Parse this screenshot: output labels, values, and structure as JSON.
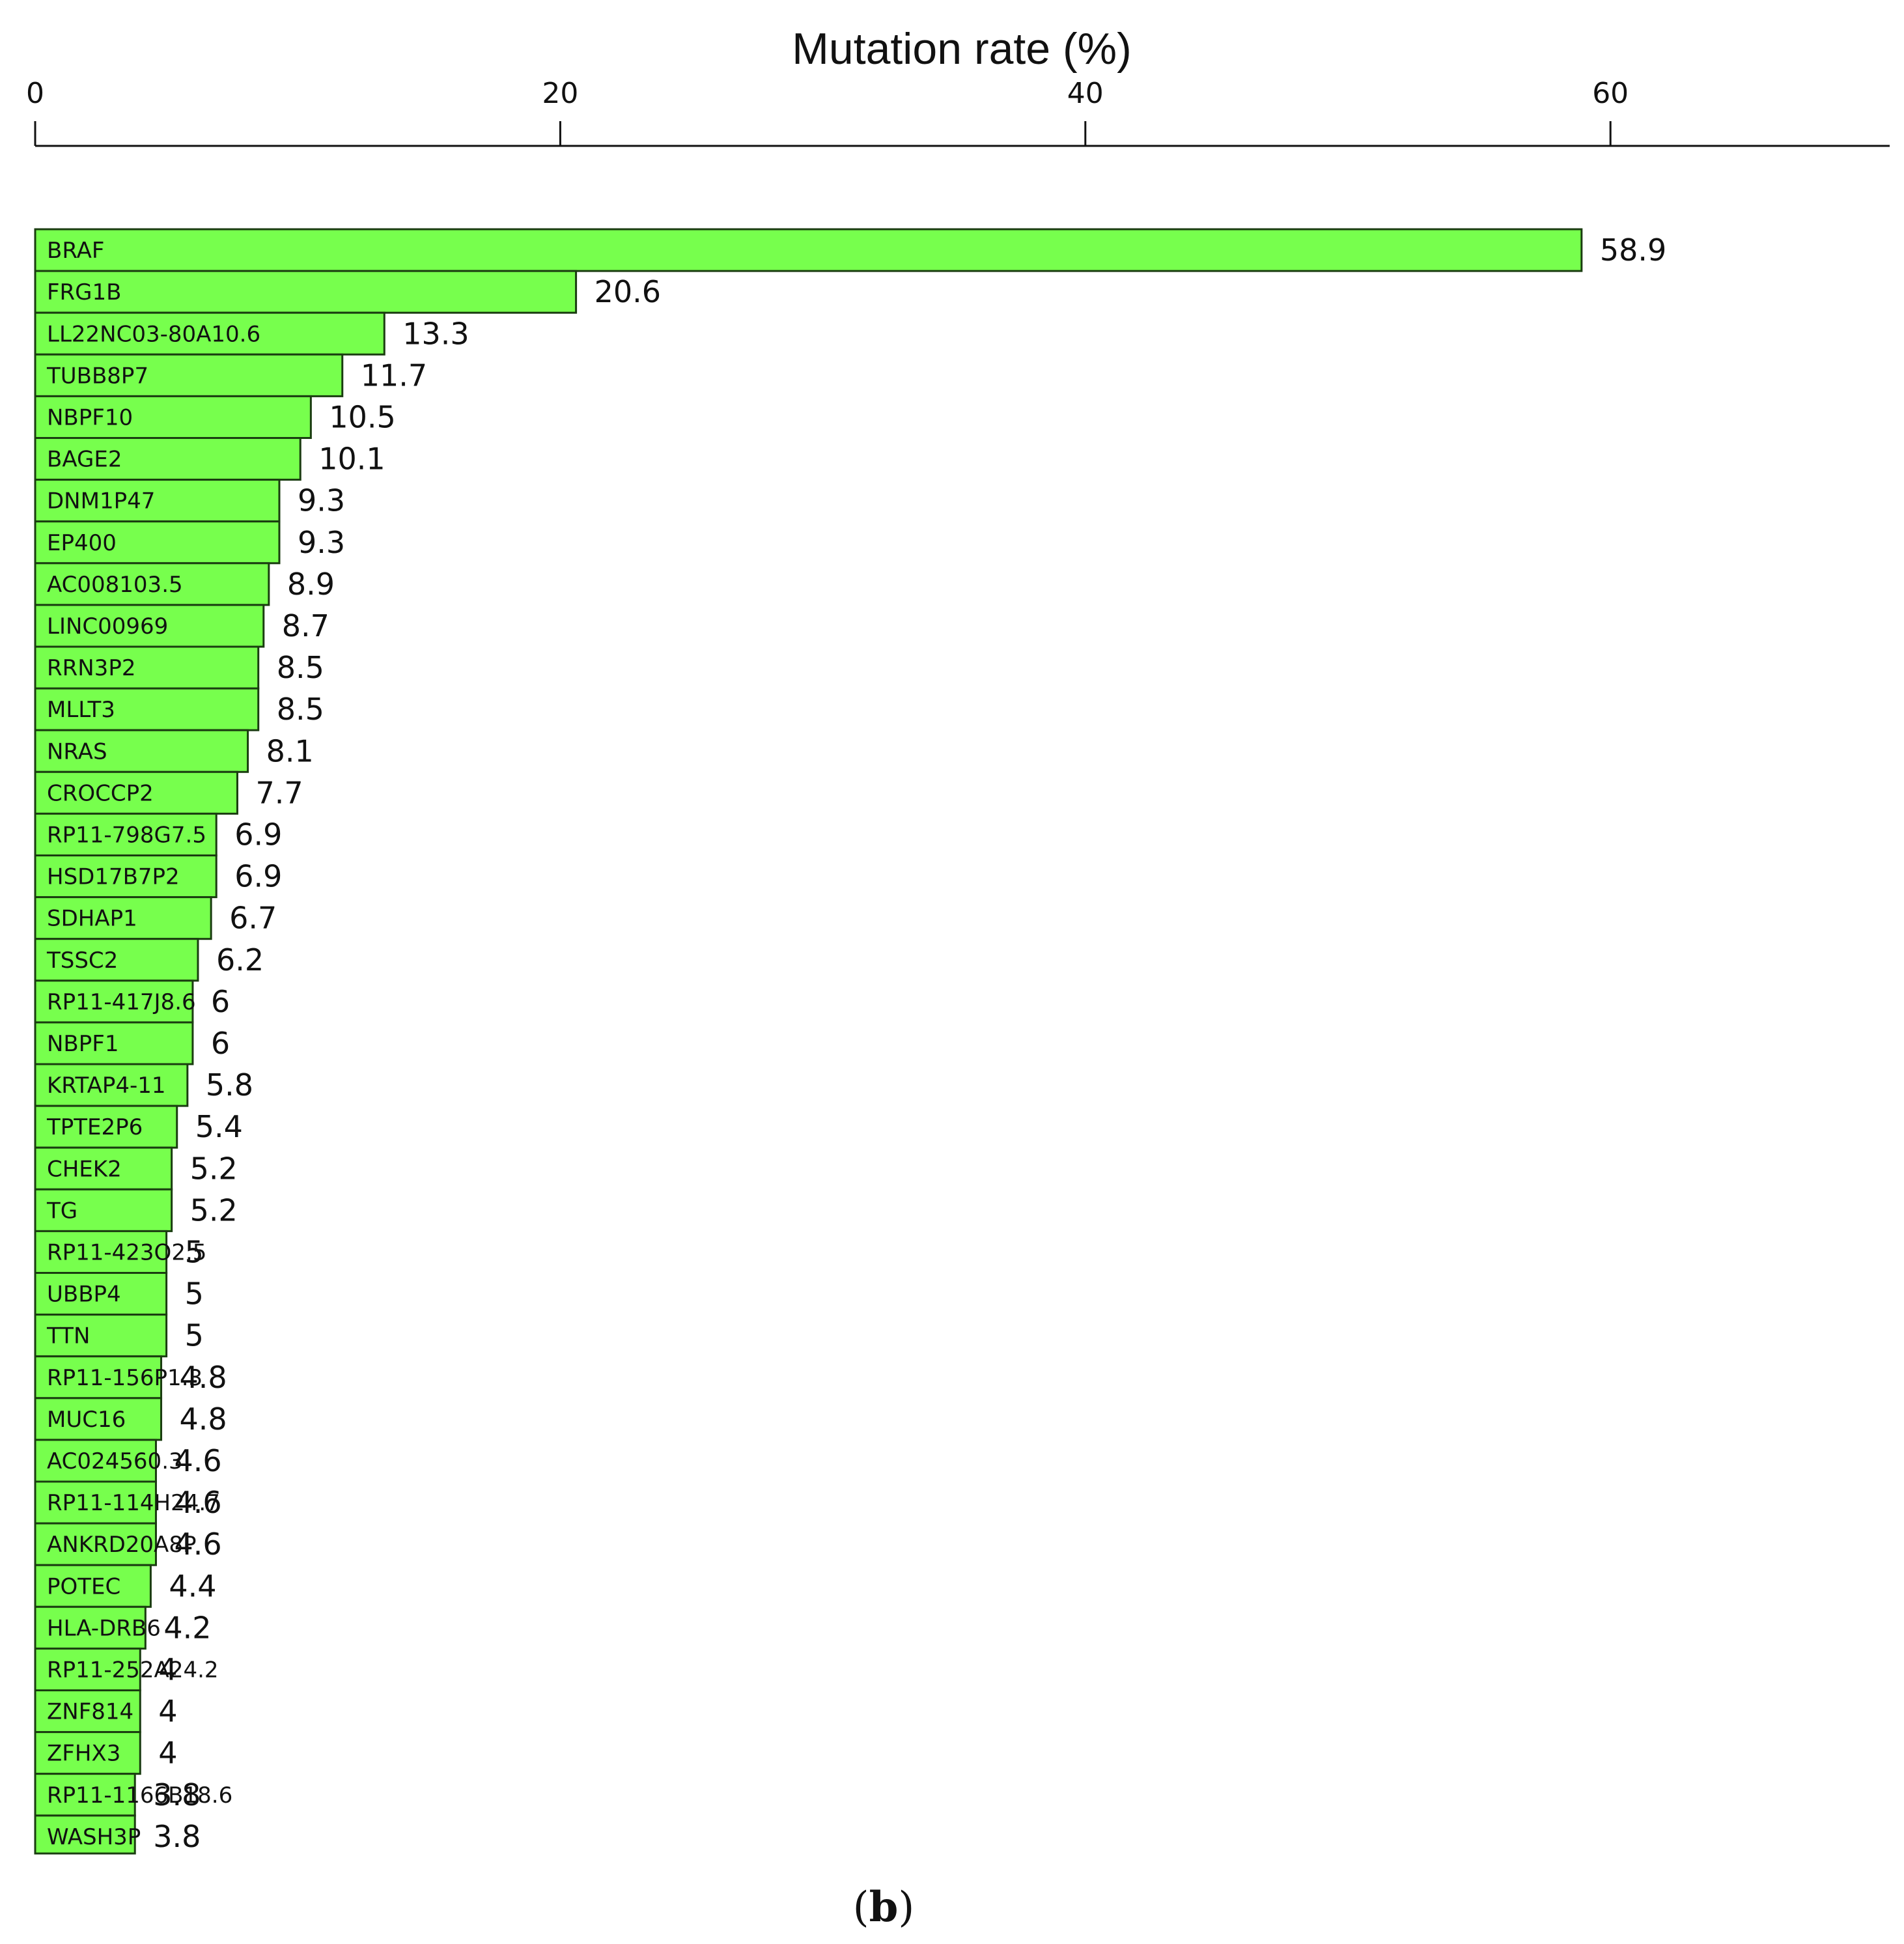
{
  "chart_data": {
    "type": "bar",
    "orientation": "horizontal",
    "title": "Mutation rate (%)",
    "xlabel": "Mutation rate (%)",
    "ylabel": "",
    "xaxis_position": "top",
    "xlim": [
      0,
      71
    ],
    "xticks": [
      0,
      20,
      40,
      60
    ],
    "grid": false,
    "legend": "none",
    "bar_color": "#77ff4d",
    "bar_edge_color": "#1a3d10",
    "categories": [
      "BRAF",
      "FRG1B",
      "LL22NC03-80A10.6",
      "TUBB8P7",
      "NBPF10",
      "BAGE2",
      "DNM1P47",
      "EP400",
      "AC008103.5",
      "LINC00969",
      "RRN3P2",
      "MLLT3",
      "NRAS",
      "CROCCP2",
      "RP11-798G7.5",
      "HSD17B7P2",
      "SDHAP1",
      "TSSC2",
      "RP11-417J8.6",
      "NBPF1",
      "KRTAP4-11",
      "TPTE2P6",
      "CHEK2",
      "TG",
      "RP11-423O2.5",
      "UBBP4",
      "TTN",
      "RP11-156P1.3",
      "MUC16",
      "AC024560.3",
      "RP11-114H24.7",
      "ANKRD20A8P",
      "POTEC",
      "HLA-DRB6",
      "RP11-252A24.2",
      "ZNF814",
      "ZFHX3",
      "RP11-1166B18.6",
      "WASH3P"
    ],
    "values": [
      58.9,
      20.6,
      13.3,
      11.7,
      10.5,
      10.1,
      9.3,
      9.3,
      8.9,
      8.7,
      8.5,
      8.5,
      8.1,
      7.7,
      6.9,
      6.9,
      6.7,
      6.2,
      6,
      6,
      5.8,
      5.4,
      5.2,
      5.2,
      5,
      5,
      5,
      4.8,
      4.8,
      4.6,
      4.6,
      4.6,
      4.4,
      4.2,
      4,
      4,
      4,
      3.8,
      3.8
    ],
    "value_labels": [
      "58.9",
      "20.6",
      "13.3",
      "11.7",
      "10.5",
      "10.1",
      "9.3",
      "9.3",
      "8.9",
      "8.7",
      "8.5",
      "8.5",
      "8.1",
      "7.7",
      "6.9",
      "6.9",
      "6.7",
      "6.2",
      "6",
      "6",
      "5.8",
      "5.4",
      "5.2",
      "5.2",
      "5",
      "5",
      "5",
      "4.8",
      "4.8",
      "4.6",
      "4.6",
      "4.6",
      "4.4",
      "4.2",
      "4",
      "4",
      "4",
      "3.8",
      "3.8"
    ]
  },
  "panel_label": {
    "open": "(",
    "letter": "b",
    "close": ")"
  }
}
